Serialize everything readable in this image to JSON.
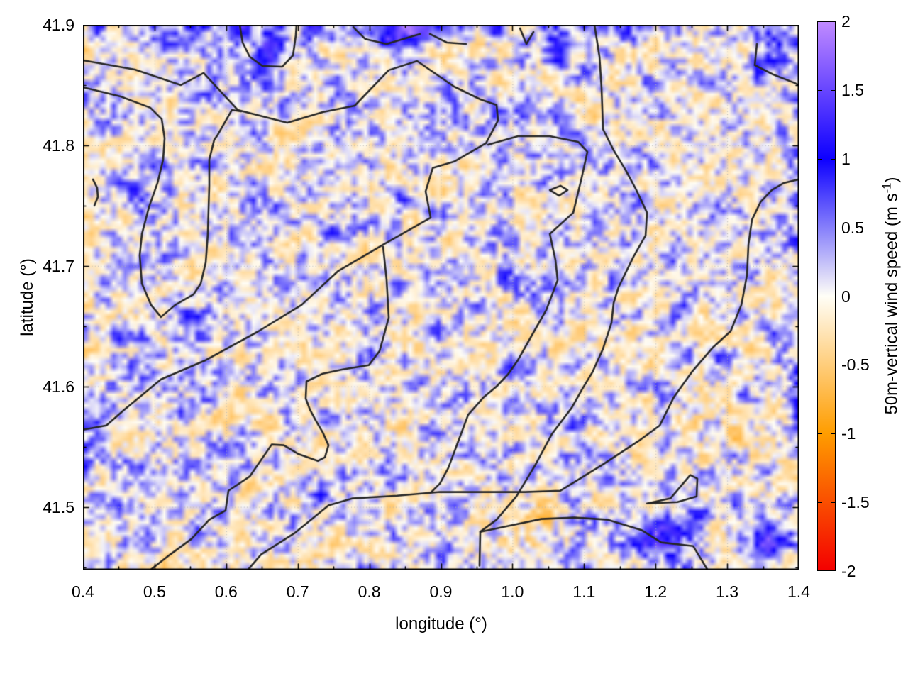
{
  "chart_data": {
    "type": "heatmap",
    "title": "",
    "xlabel": "longitude (°)",
    "ylabel": "latitude (°)",
    "x_range": [
      0.4,
      1.4
    ],
    "y_range": [
      41.448,
      41.9
    ],
    "x_ticks": [
      0.4,
      0.5,
      0.6,
      0.7,
      0.8,
      0.9,
      1.0,
      1.1,
      1.2,
      1.3,
      1.4
    ],
    "x_tick_labels": [
      "0.4",
      "0.5",
      "0.6",
      "0.7",
      "0.8",
      "0.9",
      "1.0",
      "1.1",
      "1.2",
      "1.3",
      "1.4"
    ],
    "x_minor_ticks": [
      0.45,
      0.55,
      0.65,
      0.75,
      0.85,
      0.95,
      1.05,
      1.15,
      1.25,
      1.35
    ],
    "y_ticks": [
      41.5,
      41.6,
      41.7,
      41.8,
      41.9
    ],
    "y_tick_labels": [
      "41.5",
      "41.6",
      "41.7",
      "41.8",
      "41.9"
    ],
    "y_minor_ticks": [
      41.45,
      41.55,
      41.65,
      41.75,
      41.85
    ],
    "grid": {
      "show": true,
      "color": "#b4b4b4",
      "style": "dotted"
    },
    "frame_color": "#000000",
    "colorbar": {
      "label_prefix": "50m-vertical wind speed (m s",
      "label_sup": "-1",
      "label_suffix": ")",
      "range": [
        -2,
        2
      ],
      "tick_values": [
        2,
        1.5,
        1,
        0.5,
        0,
        -0.5,
        -1,
        -1.5,
        -2
      ],
      "tick_labels": [
        "2",
        "1.5",
        "1",
        "0.5",
        "0",
        "-0.5",
        "-1",
        "-1.5",
        "-2"
      ],
      "palette": [
        [
          -2,
          [
            244,
            0,
            0
          ]
        ],
        [
          -1,
          [
            255,
            157,
            0
          ]
        ],
        [
          0,
          [
            255,
            254,
            247
          ]
        ],
        [
          1,
          [
            13,
            0,
            255
          ]
        ],
        [
          2,
          [
            192,
            138,
            255
          ]
        ]
      ]
    },
    "heatmap": {
      "seed": 1234,
      "nx": 128,
      "ny": 98,
      "base_amplitude": 0.3,
      "raw_mix": 0.45,
      "positive_boost": 1.35,
      "negative_boost": 0.85,
      "hotspots": [
        [
          0.845,
          41.893,
          1.5,
          0.03,
          0.013
        ],
        [
          0.872,
          41.898,
          1.2,
          0.02,
          0.01
        ],
        [
          0.662,
          41.88,
          1.15,
          0.018,
          0.016
        ],
        [
          0.612,
          41.896,
          0.7,
          0.02,
          0.01
        ],
        [
          1.065,
          41.878,
          1.0,
          0.022,
          0.013
        ],
        [
          0.553,
          41.887,
          0.6,
          0.015,
          0.01
        ],
        [
          1.37,
          41.885,
          0.7,
          0.025,
          0.015
        ],
        [
          0.475,
          41.755,
          0.45,
          0.012,
          0.02
        ],
        [
          1.2,
          41.474,
          1.25,
          0.035,
          0.014
        ],
        [
          1.253,
          41.487,
          0.9,
          0.02,
          0.012
        ],
        [
          1.36,
          41.472,
          0.95,
          0.03,
          0.018
        ],
        [
          1.398,
          41.59,
          0.55,
          0.01,
          0.025
        ],
        [
          1.02,
          41.48,
          -0.3,
          0.055,
          0.03
        ],
        [
          1.29,
          41.56,
          -0.18,
          0.05,
          0.04
        ],
        [
          0.76,
          41.898,
          0.4,
          0.1,
          0.012
        ],
        [
          0.5,
          41.896,
          0.3,
          0.08,
          0.01
        ],
        [
          1.1,
          41.896,
          0.35,
          0.08,
          0.012
        ]
      ]
    },
    "contours": {
      "color": "#262626",
      "width": 2.6,
      "lines": [
        {
          "points": [
            [
              0.4,
              41.8706
            ],
            [
              0.4724,
              41.8629
            ],
            [
              0.5368,
              41.85
            ],
            [
              0.5685,
              41.86
            ],
            [
              0.6161,
              41.8294
            ],
            [
              0.6854,
              41.8188
            ],
            [
              0.735,
              41.8276
            ],
            [
              0.7796,
              41.8329
            ],
            [
              0.8272,
              41.8624
            ],
            [
              0.8668,
              41.87
            ],
            [
              0.9184,
              41.8488
            ],
            [
              0.955,
              41.8382
            ],
            [
              0.9778,
              41.8335
            ],
            [
              0.9798,
              41.8206
            ],
            [
              0.963,
              41.8018
            ],
            [
              0.9184,
              41.7865
            ],
            [
              0.8886,
              41.7812
            ],
            [
              0.8787,
              41.7618
            ],
            [
              0.8857,
              41.74
            ],
            [
              0.8193,
              41.7176
            ],
            [
              0.7568,
              41.6959
            ],
            [
              0.7053,
              41.6676
            ],
            [
              0.6438,
              41.6453
            ],
            [
              0.5715,
              41.6218
            ],
            [
              0.509,
              41.6059
            ],
            [
              0.4575,
              41.5806
            ],
            [
              0.4327,
              41.5676
            ],
            [
              0.4,
              41.5641
            ]
          ]
        },
        {
          "points": [
            [
              0.4,
              41.8482
            ],
            [
              0.4525,
              41.8406
            ],
            [
              0.4941,
              41.8312
            ],
            [
              0.51,
              41.8218
            ],
            [
              0.514,
              41.8059
            ],
            [
              0.512,
              41.7882
            ],
            [
              0.5041,
              41.7688
            ],
            [
              0.4922,
              41.7488
            ],
            [
              0.4823,
              41.7265
            ],
            [
              0.4793,
              41.7088
            ],
            [
              0.4823,
              41.6853
            ],
            [
              0.4951,
              41.6676
            ],
            [
              0.509,
              41.6576
            ],
            [
              0.5288,
              41.6676
            ],
            [
              0.5546,
              41.6765
            ],
            [
              0.5645,
              41.6853
            ],
            [
              0.5715,
              41.7029
            ],
            [
              0.5744,
              41.7265
            ],
            [
              0.5764,
              41.7665
            ],
            [
              0.5764,
              41.7882
            ],
            [
              0.5834,
              41.8047
            ],
            [
              0.5883,
              41.8088
            ],
            [
              0.6081,
              41.8294
            ],
            [
              0.621,
              41.8282
            ]
          ]
        },
        {
          "points": [
            [
              0.619,
              41.9
            ],
            [
              0.623,
              41.8853
            ],
            [
              0.6329,
              41.8735
            ],
            [
              0.6508,
              41.8659
            ],
            [
              0.6785,
              41.8653
            ],
            [
              0.6934,
              41.8747
            ],
            [
              0.6973,
              41.8912
            ],
            [
              0.6983,
              41.9
            ]
          ]
        },
        {
          "points": [
            [
              0.7776,
              41.8982
            ],
            [
              0.7945,
              41.8882
            ],
            [
              0.8242,
              41.8841
            ],
            [
              0.8638,
              41.8912
            ],
            [
              0.8708,
              41.8924
            ]
          ]
        },
        {
          "points": [
            [
              0.8847,
              41.8924
            ],
            [
              0.9085,
              41.8853
            ],
            [
              0.9352,
              41.8841
            ]
          ]
        },
        {
          "points": [
            [
              1.0106,
              41.8971
            ],
            [
              1.0195,
              41.8841
            ],
            [
              1.0294,
              41.8941
            ]
          ]
        },
        {
          "points": [
            [
              1.1146,
              41.9
            ],
            [
              1.1216,
              41.8735
            ],
            [
              1.1245,
              41.8471
            ],
            [
              1.1265,
              41.8135
            ],
            [
              1.1414,
              41.7959
            ],
            [
              1.1582,
              41.7794
            ],
            [
              1.1731,
              41.7629
            ],
            [
              1.188,
              41.7441
            ],
            [
              1.186,
              41.7253
            ],
            [
              1.1691,
              41.7076
            ],
            [
              1.1483,
              41.6824
            ],
            [
              1.1414,
              41.6694
            ],
            [
              1.1384,
              41.6529
            ],
            [
              1.1265,
              41.6312
            ],
            [
              1.1117,
              41.6118
            ],
            [
              1.0968,
              41.5971
            ],
            [
              1.0829,
              41.5824
            ],
            [
              1.0552,
              41.5606
            ],
            [
              1.0324,
              41.5353
            ],
            [
              1.0056,
              41.5088
            ],
            [
              0.9778,
              41.4894
            ],
            [
              0.955,
              41.4794
            ],
            [
              0.954,
              41.4512
            ]
          ]
        },
        {
          "points": [
            [
              0.955,
              41.4794
            ],
            [
              0.9927,
              41.4841
            ],
            [
              1.0403,
              41.49
            ],
            [
              1.0869,
              41.4912
            ],
            [
              1.1334,
              41.4894
            ],
            [
              1.181,
              41.4806
            ],
            [
              1.2078,
              41.4706
            ],
            [
              1.2524,
              41.4676
            ],
            [
              1.2722,
              41.4482
            ]
          ]
        },
        {
          "points": [
            [
              0.631,
              41.4482
            ],
            [
              0.6488,
              41.4606
            ],
            [
              0.6954,
              41.4782
            ],
            [
              0.743,
              41.5012
            ],
            [
              0.7767,
              41.5071
            ],
            [
              0.8391,
              41.5094
            ],
            [
              0.8986,
              41.5124
            ],
            [
              0.958,
              41.5124
            ],
            [
              1.0175,
              41.5124
            ],
            [
              1.0671,
              41.5135
            ],
            [
              1.1265,
              41.5353
            ],
            [
              1.1761,
              41.5547
            ],
            [
              1.2058,
              41.5676
            ],
            [
              1.2256,
              41.5912
            ],
            [
              1.2504,
              41.6118
            ],
            [
              1.2801,
              41.6324
            ],
            [
              1.3049,
              41.6459
            ],
            [
              1.3198,
              41.6676
            ],
            [
              1.3277,
              41.6924
            ],
            [
              1.3297,
              41.7176
            ],
            [
              1.3346,
              41.7382
            ],
            [
              1.3465,
              41.7529
            ],
            [
              1.3624,
              41.7629
            ],
            [
              1.3792,
              41.7688
            ],
            [
              1.4,
              41.7718
            ]
          ]
        },
        {
          "points": [
            [
              0.9659,
              41.8006
            ],
            [
              1.0076,
              41.8076
            ],
            [
              1.0522,
              41.8076
            ],
            [
              1.0918,
              41.8029
            ],
            [
              1.1047,
              41.7947
            ],
            [
              1.0968,
              41.7735
            ],
            [
              1.0849,
              41.7441
            ],
            [
              1.0522,
              41.7265
            ],
            [
              1.0601,
              41.7047
            ],
            [
              1.0631,
              41.6882
            ],
            [
              1.0473,
              41.6635
            ],
            [
              1.0304,
              41.6459
            ],
            [
              1.0076,
              41.6218
            ],
            [
              0.9937,
              41.61
            ],
            [
              0.9778,
              41.6
            ],
            [
              0.96,
              41.5912
            ],
            [
              0.9382,
              41.5765
            ],
            [
              0.9233,
              41.5529
            ],
            [
              0.9104,
              41.5324
            ],
            [
              0.8986,
              41.5194
            ],
            [
              0.8857,
              41.5118
            ]
          ]
        },
        {
          "points": [
            [
              1.3415,
              41.8841
            ],
            [
              1.3386,
              41.8665
            ],
            [
              1.3643,
              41.8588
            ],
            [
              1.3941,
              41.8518
            ],
            [
              1.4,
              41.85
            ]
          ]
        },
        {
          "points": [
            [
              0.4139,
              41.7718
            ],
            [
              0.4198,
              41.7647
            ],
            [
              0.4208,
              41.7571
            ],
            [
              0.4159,
              41.75
            ]
          ]
        },
        {
          "points": [
            [
              1.0522,
              41.7629
            ],
            [
              1.0671,
              41.7665
            ],
            [
              1.077,
              41.7629
            ],
            [
              1.0651,
              41.7582
            ],
            [
              1.0522,
              41.7629
            ]
          ]
        },
        {
          "points": [
            [
              1.188,
              41.5029
            ],
            [
              1.2207,
              41.5071
            ],
            [
              1.2484,
              41.5265
            ],
            [
              1.2583,
              41.5235
            ],
            [
              1.2573,
              41.5088
            ],
            [
              1.2306,
              41.5041
            ],
            [
              1.188,
              41.5029
            ]
          ]
        },
        {
          "points": [
            [
              0.4951,
              41.4482
            ],
            [
              0.5219,
              41.4606
            ],
            [
              0.5516,
              41.4735
            ],
            [
              0.5764,
              41.4894
            ],
            [
              0.5992,
              41.4971
            ],
            [
              0.6032,
              41.5135
            ],
            [
              0.6329,
              41.5253
            ],
            [
              0.6636,
              41.5518
            ],
            [
              0.6805,
              41.5512
            ],
            [
              0.7003,
              41.5441
            ],
            [
              0.7281,
              41.5382
            ]
          ]
        },
        {
          "points": [
            [
              0.8193,
              41.7159
            ],
            [
              0.8242,
              41.6882
            ],
            [
              0.8272,
              41.6571
            ],
            [
              0.8143,
              41.6294
            ],
            [
              0.7994,
              41.6176
            ],
            [
              0.7628,
              41.6141
            ],
            [
              0.735,
              41.6106
            ],
            [
              0.7122,
              41.6041
            ],
            [
              0.7112,
              41.59
            ],
            [
              0.7172,
              41.5806
            ],
            [
              0.7251,
              41.5718
            ],
            [
              0.735,
              41.5618
            ],
            [
              0.743,
              41.5512
            ],
            [
              0.738,
              41.5412
            ],
            [
              0.7281,
              41.5382
            ]
          ]
        }
      ]
    }
  }
}
